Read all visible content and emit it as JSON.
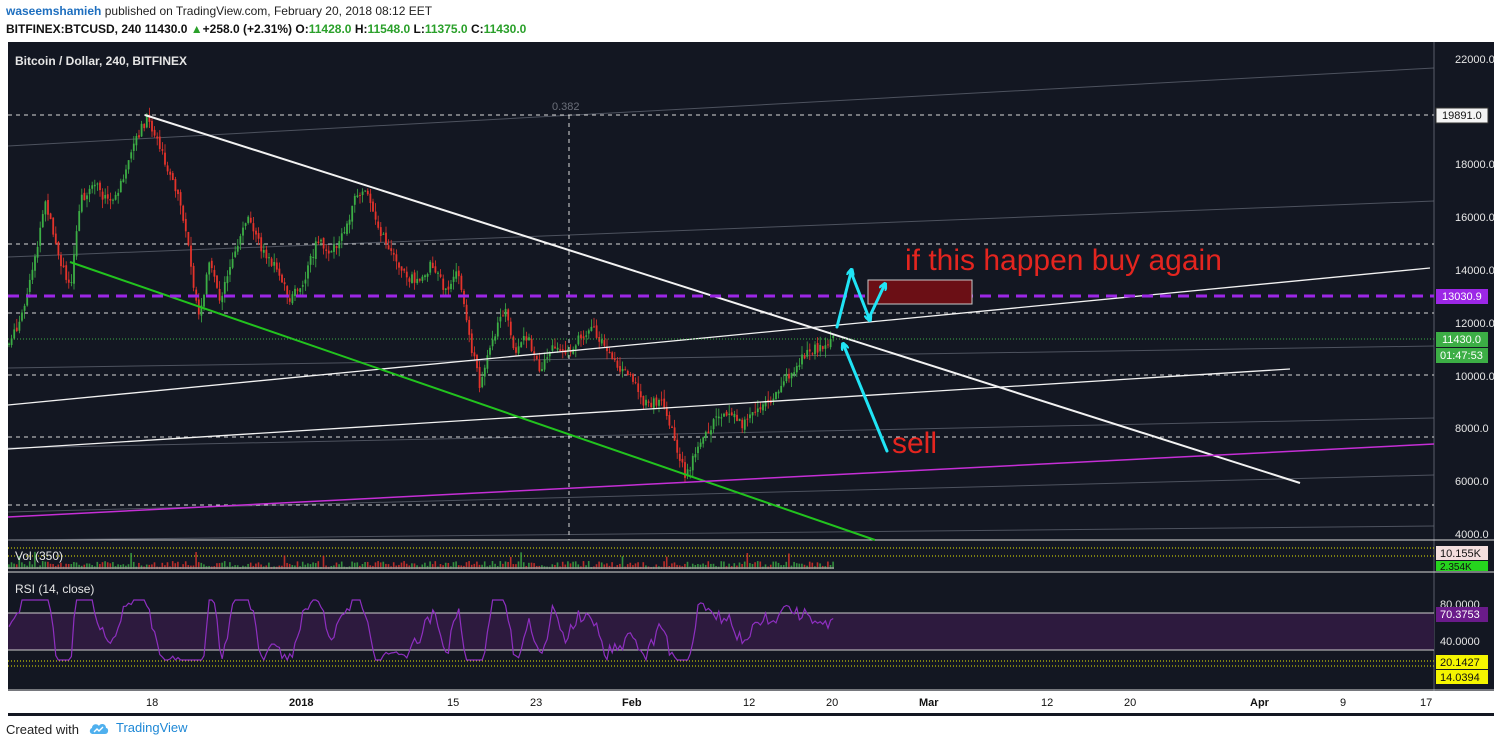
{
  "header": {
    "author": "waseemshamieh",
    "published": "published on TradingView.com, February 20, 2018 08:12 EET",
    "symbol": "BITFINEX:BTCUSD, 240",
    "last": "11430.0",
    "change": "+258.0 (+2.31%)",
    "o_label": "O:",
    "o_val": "11428.0",
    "h_label": "H:",
    "h_val": "11548.0",
    "l_label": "L:",
    "l_val": "11375.0",
    "c_label": "C:",
    "c_val": "11430.0"
  },
  "chart": {
    "title": "Bitcoin / Dollar, 240, BITFINEX",
    "fib_label": "0.382",
    "annotation_buy": "if this happen buy again",
    "annotation_sell": "sell",
    "price_axis": [
      "22000.0",
      "18000.0",
      "16000.0",
      "14000.0",
      "12000.0",
      "10000.0",
      "8000.0",
      "6000.0",
      "4000.0"
    ],
    "price_tag_high": "19891.0",
    "price_tag_line": "13030.9",
    "price_tag_last": "11430.0",
    "price_tag_countdown": "01:47:53",
    "time_axis": [
      "18",
      "2018",
      "15",
      "23",
      "Feb",
      "12",
      "20",
      "Mar",
      "12",
      "20",
      "Apr",
      "9",
      "17"
    ]
  },
  "vol": {
    "label": "Vol (350)",
    "tag_top": "10.155K",
    "tag_bottom": "2.354K"
  },
  "rsi": {
    "label": "RSI (14, close)",
    "axis": [
      "80.0000",
      "40.0000"
    ],
    "tag_value": "70.3753",
    "tag_a": "20.1427",
    "tag_b": "14.0394"
  },
  "colors": {
    "bg": "#131722",
    "up": "#3cae45",
    "down": "#e4332b",
    "purple_line": "#9c27e6",
    "green_trend": "#22c31e",
    "magenta_trend": "#c52fd6",
    "cyan_arrow": "#20e4f5",
    "annotation_red": "#e4251f"
  },
  "footer": {
    "created": "Created with",
    "brand": "TradingView"
  }
}
